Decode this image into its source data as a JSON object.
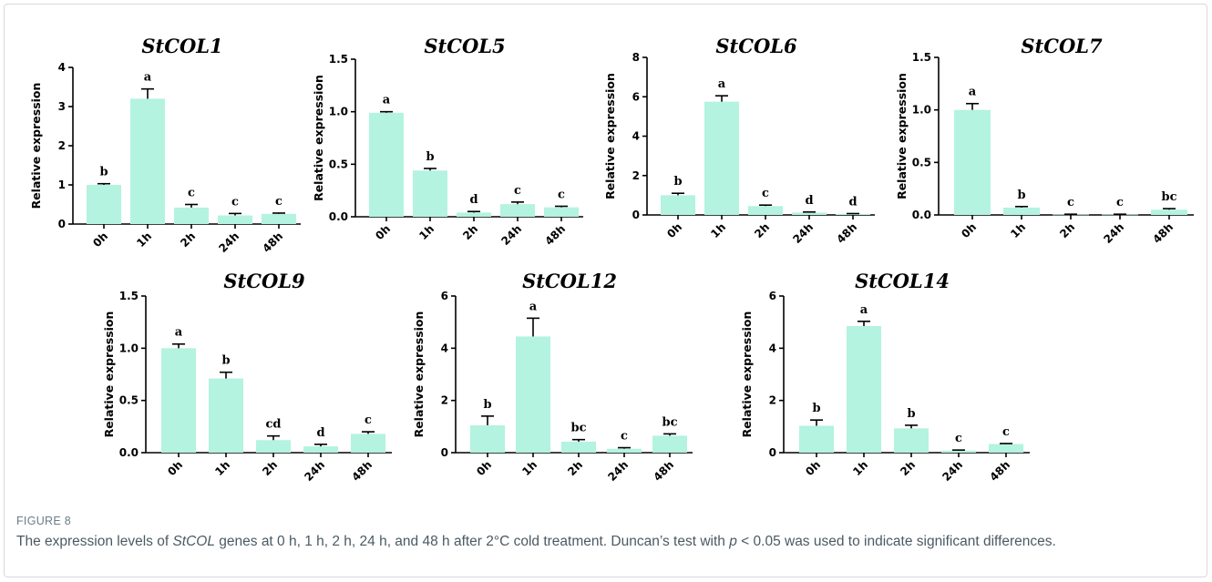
{
  "figure": {
    "label": "FIGURE 8",
    "caption_parts": [
      {
        "text": "The expression levels of ",
        "italic": false
      },
      {
        "text": "StCOL",
        "italic": true
      },
      {
        "text": " genes at 0 h, 1 h, 2 h, 24 h, and 48 h after 2°C cold treatment. Duncan’s test with ",
        "italic": false
      },
      {
        "text": "p",
        "italic": true
      },
      {
        "text": " < 0.05 was used to indicate significant differences.",
        "italic": false
      }
    ],
    "colors": {
      "bar": "#b3f3e0",
      "axis": "#000000",
      "caption": "#4a5a64",
      "label": "#6b7c87"
    }
  },
  "chart_data": [
    {
      "type": "bar",
      "title": "StCOL1",
      "ylabel": "Relative expression",
      "categories": [
        "0h",
        "1h",
        "2h",
        "24h",
        "48h"
      ],
      "values": [
        1.0,
        3.2,
        0.42,
        0.22,
        0.26
      ],
      "errors": [
        0.03,
        0.25,
        0.08,
        0.05,
        0.02
      ],
      "letters": [
        "b",
        "a",
        "c",
        "c",
        "c"
      ],
      "ylim": [
        0,
        4
      ],
      "yticks": [
        0,
        1,
        2,
        3,
        4
      ],
      "ytick_labels": [
        "0",
        "1",
        "2",
        "3",
        "4"
      ]
    },
    {
      "type": "bar",
      "title": "StCOL5",
      "ylabel": "Relative expression",
      "categories": [
        "0h",
        "1h",
        "2h",
        "24h",
        "48h"
      ],
      "values": [
        0.99,
        0.44,
        0.04,
        0.12,
        0.09
      ],
      "errors": [
        0.01,
        0.02,
        0.01,
        0.02,
        0.01
      ],
      "letters": [
        "a",
        "b",
        "d",
        "c",
        "c"
      ],
      "ylim": [
        0,
        1.5
      ],
      "yticks": [
        0,
        0.5,
        1,
        1.5
      ],
      "ytick_labels": [
        "0.0",
        "0.5",
        "1.0",
        "1.5"
      ]
    },
    {
      "type": "bar",
      "title": "StCOL6",
      "ylabel": "Relative expression",
      "categories": [
        "0h",
        "1h",
        "2h",
        "24h",
        "48h"
      ],
      "values": [
        1.0,
        5.75,
        0.45,
        0.12,
        0.05
      ],
      "errors": [
        0.1,
        0.3,
        0.05,
        0.03,
        0.02
      ],
      "letters": [
        "b",
        "a",
        "c",
        "d",
        "d"
      ],
      "ylim": [
        0,
        8
      ],
      "yticks": [
        0,
        2,
        4,
        6,
        8
      ],
      "ytick_labels": [
        "0",
        "2",
        "4",
        "6",
        "8"
      ]
    },
    {
      "type": "bar",
      "title": "StCOL7",
      "ylabel": "Relative expression",
      "categories": [
        "0h",
        "1h",
        "2h",
        "24h",
        "48h"
      ],
      "values": [
        1.0,
        0.07,
        0.005,
        0.005,
        0.05
      ],
      "errors": [
        0.06,
        0.01,
        0.002,
        0.002,
        0.01
      ],
      "letters": [
        "a",
        "b",
        "c",
        "c",
        "bc"
      ],
      "ylim": [
        0,
        1.5
      ],
      "yticks": [
        0,
        0.5,
        1,
        1.5
      ],
      "ytick_labels": [
        "0.0",
        "0.5",
        "1.0",
        "1.5"
      ]
    },
    {
      "type": "bar",
      "title": "StCOL9",
      "ylabel": "Relative expression",
      "categories": [
        "0h",
        "1h",
        "2h",
        "24h",
        "48h"
      ],
      "values": [
        1.0,
        0.71,
        0.12,
        0.06,
        0.18
      ],
      "errors": [
        0.04,
        0.06,
        0.04,
        0.02,
        0.02
      ],
      "letters": [
        "a",
        "b",
        "cd",
        "d",
        "c"
      ],
      "ylim": [
        0,
        1.5
      ],
      "yticks": [
        0,
        0.5,
        1,
        1.5
      ],
      "ytick_labels": [
        "0.0",
        "0.5",
        "1.0",
        "1.5"
      ]
    },
    {
      "type": "bar",
      "title": "StCOL12",
      "ylabel": "Relative expression",
      "categories": [
        "0h",
        "1h",
        "2h",
        "24h",
        "48h"
      ],
      "values": [
        1.05,
        4.45,
        0.42,
        0.15,
        0.65
      ],
      "errors": [
        0.35,
        0.7,
        0.08,
        0.04,
        0.07
      ],
      "letters": [
        "b",
        "a",
        "bc",
        "c",
        "bc"
      ],
      "ylim": [
        0,
        6
      ],
      "yticks": [
        0,
        2,
        4,
        6
      ],
      "ytick_labels": [
        "0",
        "2",
        "4",
        "6"
      ]
    },
    {
      "type": "bar",
      "title": "StCOL14",
      "ylabel": "Relative expression",
      "categories": [
        "0h",
        "1h",
        "2h",
        "24h",
        "48h"
      ],
      "values": [
        1.03,
        4.85,
        0.93,
        0.08,
        0.33
      ],
      "errors": [
        0.22,
        0.18,
        0.12,
        0.02,
        0.02
      ],
      "letters": [
        "b",
        "a",
        "b",
        "c",
        "c"
      ],
      "ylim": [
        0,
        6
      ],
      "yticks": [
        0,
        2,
        4,
        6
      ],
      "ytick_labels": [
        "0",
        "2",
        "4",
        "6"
      ]
    }
  ]
}
